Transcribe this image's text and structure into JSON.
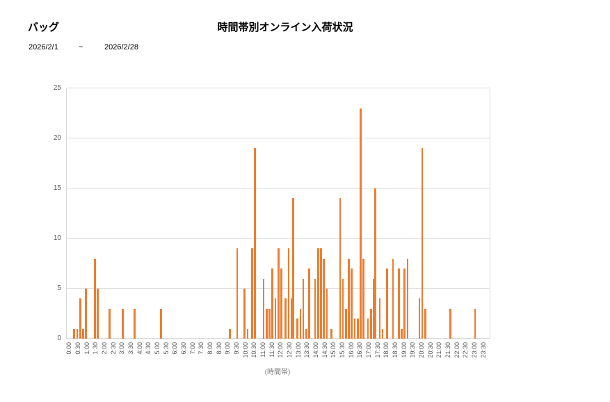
{
  "header": {
    "product_label": "バッグ",
    "title": "時間帯別オンライン入荷状況",
    "date_from": "2026/2/1",
    "date_separator": "~",
    "date_to": "2026/2/28"
  },
  "chart_data": {
    "type": "bar",
    "title": "時間帯別オンライン入荷状況",
    "xlabel": "(時間帯)",
    "ylabel": "",
    "ylim": [
      0,
      25
    ],
    "yticks": [
      0,
      5,
      10,
      15,
      20,
      25
    ],
    "grid": true,
    "legend_position": "none",
    "bar_color": "#ed7d31",
    "gridline_color": "#d9d9d9",
    "tick_label_color": "#595959",
    "x_categories": [
      "0:00",
      "0:30",
      "1:00",
      "1:30",
      "2:00",
      "2:30",
      "3:00",
      "3:30",
      "4:00",
      "4:30",
      "5:00",
      "5:30",
      "6:00",
      "6:30",
      "7:00",
      "7:30",
      "8:00",
      "8:30",
      "9:00",
      "9:30",
      "10:00",
      "10:30",
      "11:00",
      "11:30",
      "12:00",
      "12:30",
      "13:00",
      "13:30",
      "14:00",
      "14:30",
      "15:00",
      "15:30",
      "16:00",
      "16:30",
      "17:00",
      "17:30",
      "18:00",
      "18:30",
      "19:00",
      "19:30",
      "20:00",
      "20:30",
      "21:00",
      "21:30",
      "22:00",
      "22:30",
      "23:00",
      "23:30"
    ],
    "bars": [
      {
        "time": "0:15",
        "value": 1
      },
      {
        "time": "0:25",
        "value": 1
      },
      {
        "time": "0:35",
        "value": 4
      },
      {
        "time": "0:45",
        "value": 1
      },
      {
        "time": "0:55",
        "value": 5
      },
      {
        "time": "1:25",
        "value": 8
      },
      {
        "time": "1:35",
        "value": 5
      },
      {
        "time": "2:15",
        "value": 3
      },
      {
        "time": "3:00",
        "value": 3
      },
      {
        "time": "3:40",
        "value": 3
      },
      {
        "time": "5:10",
        "value": 3
      },
      {
        "time": "9:05",
        "value": 1
      },
      {
        "time": "9:30",
        "value": 9
      },
      {
        "time": "9:55",
        "value": 5
      },
      {
        "time": "10:05",
        "value": 1
      },
      {
        "time": "10:20",
        "value": 9
      },
      {
        "time": "10:30",
        "value": 19
      },
      {
        "time": "11:00",
        "value": 6
      },
      {
        "time": "11:10",
        "value": 3
      },
      {
        "time": "11:20",
        "value": 3
      },
      {
        "time": "11:30",
        "value": 7
      },
      {
        "time": "11:40",
        "value": 4
      },
      {
        "time": "11:50",
        "value": 9
      },
      {
        "time": "12:00",
        "value": 7
      },
      {
        "time": "12:15",
        "value": 4
      },
      {
        "time": "12:25",
        "value": 9
      },
      {
        "time": "12:35",
        "value": 4
      },
      {
        "time": "12:40",
        "value": 14
      },
      {
        "time": "12:55",
        "value": 2
      },
      {
        "time": "13:05",
        "value": 3
      },
      {
        "time": "13:15",
        "value": 6
      },
      {
        "time": "13:25",
        "value": 1
      },
      {
        "time": "13:35",
        "value": 7
      },
      {
        "time": "13:55",
        "value": 6
      },
      {
        "time": "14:05",
        "value": 9
      },
      {
        "time": "14:15",
        "value": 9
      },
      {
        "time": "14:25",
        "value": 8
      },
      {
        "time": "14:35",
        "value": 5
      },
      {
        "time": "14:50",
        "value": 1
      },
      {
        "time": "15:20",
        "value": 14
      },
      {
        "time": "15:30",
        "value": 6
      },
      {
        "time": "15:40",
        "value": 3
      },
      {
        "time": "15:50",
        "value": 8
      },
      {
        "time": "16:00",
        "value": 7
      },
      {
        "time": "16:10",
        "value": 2
      },
      {
        "time": "16:20",
        "value": 2
      },
      {
        "time": "16:30",
        "value": 23
      },
      {
        "time": "16:40",
        "value": 8
      },
      {
        "time": "16:55",
        "value": 2
      },
      {
        "time": "17:05",
        "value": 3
      },
      {
        "time": "17:15",
        "value": 6
      },
      {
        "time": "17:20",
        "value": 15
      },
      {
        "time": "17:35",
        "value": 4
      },
      {
        "time": "17:45",
        "value": 1
      },
      {
        "time": "18:00",
        "value": 7
      },
      {
        "time": "18:20",
        "value": 8
      },
      {
        "time": "18:40",
        "value": 7
      },
      {
        "time": "18:50",
        "value": 1
      },
      {
        "time": "19:00",
        "value": 7
      },
      {
        "time": "19:10",
        "value": 8
      },
      {
        "time": "19:50",
        "value": 4
      },
      {
        "time": "20:00",
        "value": 19
      },
      {
        "time": "20:10",
        "value": 3
      },
      {
        "time": "21:35",
        "value": 3
      },
      {
        "time": "23:00",
        "value": 3
      }
    ]
  }
}
